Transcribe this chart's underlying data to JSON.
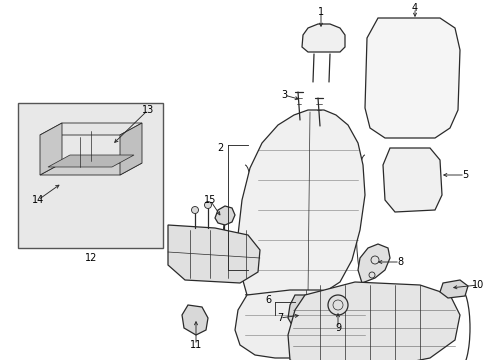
{
  "background_color": "#ffffff",
  "line_color": "#2a2a2a",
  "label_color": "#000000",
  "figsize": [
    4.89,
    3.6
  ],
  "dpi": 100,
  "lw_main": 0.9,
  "lw_detail": 0.5,
  "label_fs": 7.0
}
